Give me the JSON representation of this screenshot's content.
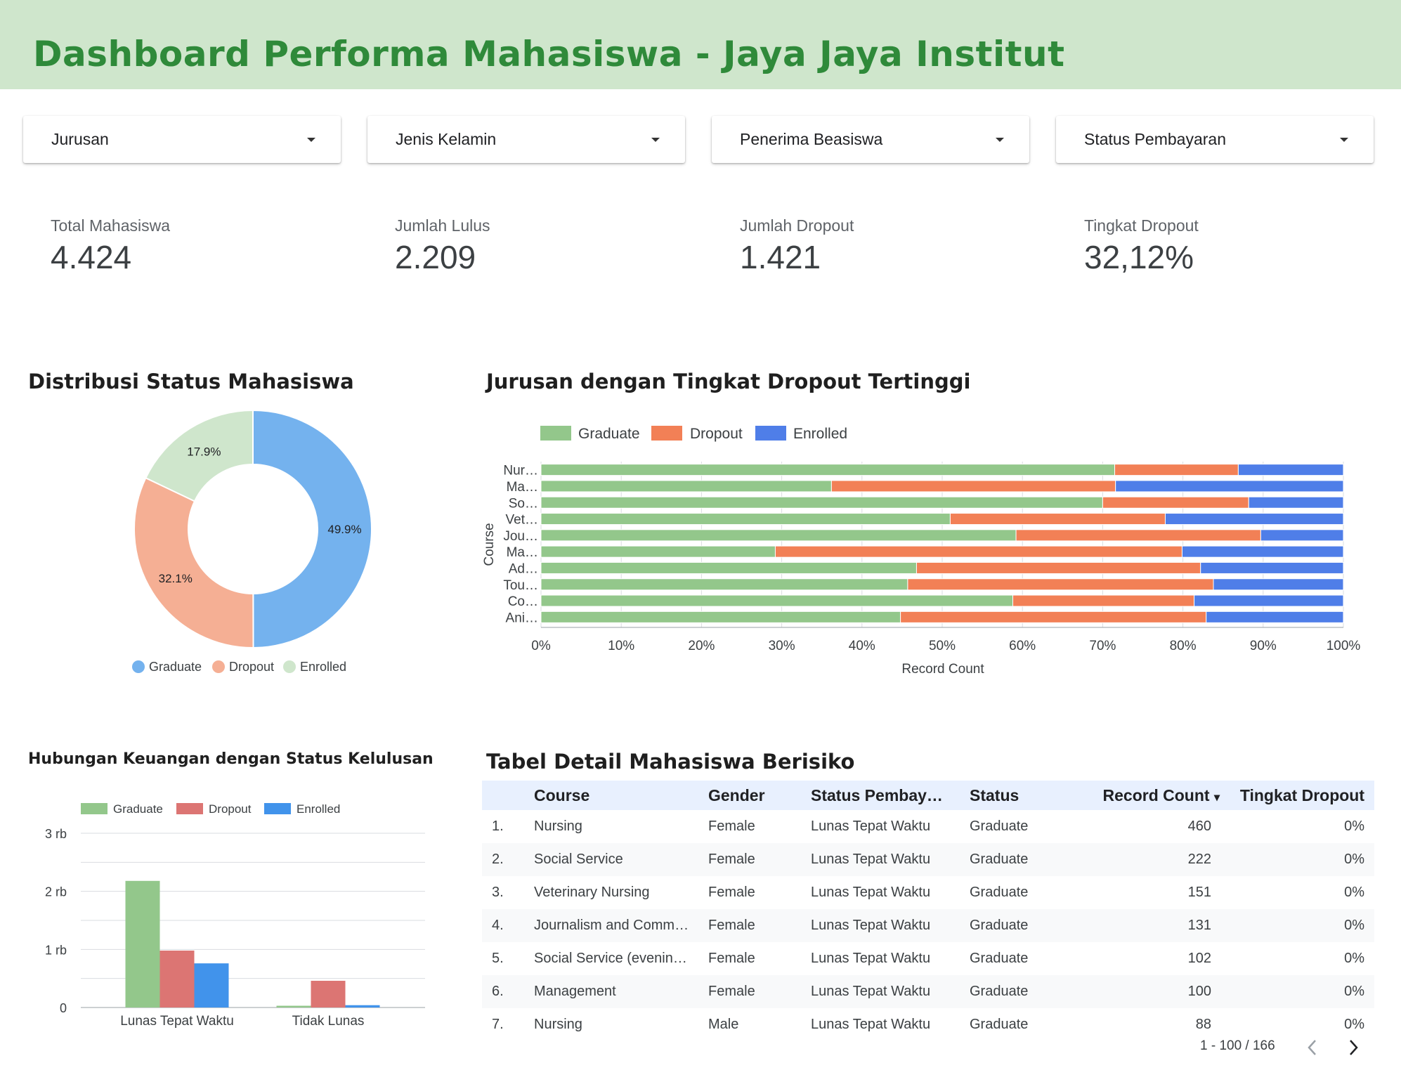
{
  "header": {
    "title": "Dashboard Performa Mahasiswa - Jaya Jaya Institut"
  },
  "filters": [
    {
      "label": "Jurusan"
    },
    {
      "label": "Jenis Kelamin"
    },
    {
      "label": "Penerima Beasiswa"
    },
    {
      "label": "Status Pembayaran"
    }
  ],
  "kpis": [
    {
      "label": "Total Mahasiswa",
      "value": "4.424"
    },
    {
      "label": "Jumlah Lulus",
      "value": "2.209"
    },
    {
      "label": "Jumlah Dropout",
      "value": "1.421"
    },
    {
      "label": "Tingkat Dropout",
      "value": "32,12%"
    }
  ],
  "colors": {
    "graduate": "#93c78b",
    "dropout": "#f28056",
    "enrolled": "#4f7ee8",
    "pie_graduate": "#74b2ee",
    "pie_dropout": "#f5af94",
    "pie_enrolled": "#cfe6cc",
    "bar_graduate": "#93c78b",
    "bar_dropout": "#dc7573",
    "bar_enrolled": "#4193eb"
  },
  "donut": {
    "title": "Distribusi Status Mahasiswa",
    "legend": [
      "Graduate",
      "Dropout",
      "Enrolled"
    ],
    "labels": [
      "49.9%",
      "32.1%",
      "17.9%"
    ]
  },
  "stacked": {
    "title": "Jurusan dengan Tingkat Dropout Tertinggi",
    "legend": [
      "Graduate",
      "Dropout",
      "Enrolled"
    ],
    "yaxis_label": "Course",
    "xaxis_label": "Record Count",
    "x_ticks": [
      "0%",
      "10%",
      "20%",
      "30%",
      "40%",
      "50%",
      "60%",
      "70%",
      "80%",
      "90%",
      "100%"
    ]
  },
  "grouped": {
    "title": "Hubungan Keuangan dengan Status Kelulusan",
    "legend": [
      "Graduate",
      "Dropout",
      "Enrolled"
    ],
    "y_ticks": [
      "0",
      "1 rb",
      "2 rb",
      "3 rb"
    ]
  },
  "chart_data": [
    {
      "type": "pie",
      "title": "Distribusi Status Mahasiswa",
      "categories": [
        "Graduate",
        "Dropout",
        "Enrolled"
      ],
      "values": [
        49.9,
        32.1,
        17.9
      ]
    },
    {
      "type": "bar",
      "orientation": "horizontal",
      "stacked": "percent",
      "title": "Jurusan dengan Tingkat Dropout Tertinggi",
      "ylabel": "Course",
      "xlabel": "Record Count",
      "categories": [
        "Nur…",
        "Ma…",
        "So…",
        "Vet…",
        "Jou…",
        "Ma…",
        "Ad…",
        "Tou…",
        "Co…",
        "Ani…"
      ],
      "series": [
        {
          "name": "Graduate",
          "values": [
            71.5,
            36.2,
            70.0,
            51.0,
            59.2,
            29.2,
            46.8,
            45.7,
            58.8,
            44.8
          ]
        },
        {
          "name": "Dropout",
          "values": [
            15.4,
            35.4,
            18.2,
            26.8,
            30.5,
            50.7,
            35.4,
            38.1,
            22.6,
            38.1
          ]
        },
        {
          "name": "Enrolled",
          "values": [
            13.1,
            28.4,
            11.8,
            22.2,
            10.3,
            20.1,
            17.8,
            16.2,
            18.6,
            17.1
          ]
        }
      ],
      "xlim": [
        0,
        100
      ],
      "grid": true,
      "legend_position": "top"
    },
    {
      "type": "bar",
      "title": "Hubungan Keuangan dengan Status Kelulusan",
      "categories": [
        "Lunas Tepat Waktu",
        "Tidak Lunas"
      ],
      "series": [
        {
          "name": "Graduate",
          "values": [
            2180,
            30
          ]
        },
        {
          "name": "Dropout",
          "values": [
            980,
            460
          ]
        },
        {
          "name": "Enrolled",
          "values": [
            760,
            40
          ]
        }
      ],
      "ylim": [
        0,
        3000
      ],
      "grid": true,
      "legend_position": "top"
    }
  ],
  "table": {
    "title": "Tabel Detail Mahasiswa Berisiko",
    "columns": [
      "Course",
      "Gender",
      "Status Pembay…",
      "Status",
      "Record Count",
      "Tingkat Dropout"
    ],
    "sort_indicator": "▾",
    "rows": [
      {
        "idx": "1.",
        "course": "Nursing",
        "gender": "Female",
        "pay": "Lunas Tepat Waktu",
        "status": "Graduate",
        "count": "460",
        "rate": "0%"
      },
      {
        "idx": "2.",
        "course": "Social Service",
        "gender": "Female",
        "pay": "Lunas Tepat Waktu",
        "status": "Graduate",
        "count": "222",
        "rate": "0%"
      },
      {
        "idx": "3.",
        "course": "Veterinary Nursing",
        "gender": "Female",
        "pay": "Lunas Tepat Waktu",
        "status": "Graduate",
        "count": "151",
        "rate": "0%"
      },
      {
        "idx": "4.",
        "course": "Journalism and Comm…",
        "gender": "Female",
        "pay": "Lunas Tepat Waktu",
        "status": "Graduate",
        "count": "131",
        "rate": "0%"
      },
      {
        "idx": "5.",
        "course": "Social Service (evenin…",
        "gender": "Female",
        "pay": "Lunas Tepat Waktu",
        "status": "Graduate",
        "count": "102",
        "rate": "0%"
      },
      {
        "idx": "6.",
        "course": "Management",
        "gender": "Female",
        "pay": "Lunas Tepat Waktu",
        "status": "Graduate",
        "count": "100",
        "rate": "0%"
      },
      {
        "idx": "7.",
        "course": "Nursing",
        "gender": "Male",
        "pay": "Lunas Tepat Waktu",
        "status": "Graduate",
        "count": "88",
        "rate": "0%"
      }
    ],
    "pagination": "1 - 100 / 166"
  }
}
